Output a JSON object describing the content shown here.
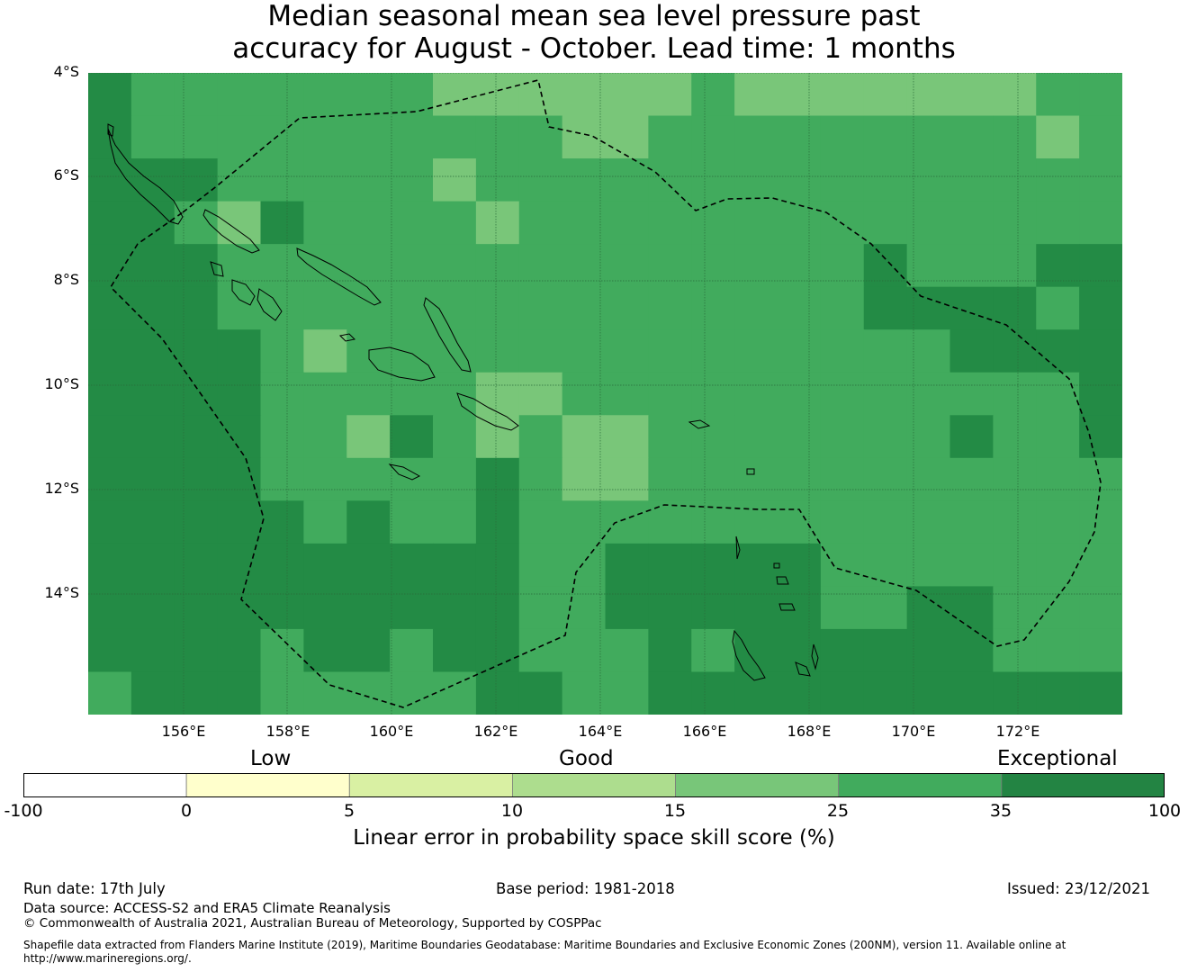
{
  "title": {
    "line1": "Median seasonal mean sea level pressure past",
    "line2": "accuracy for August - October. Lead time: 1 months"
  },
  "map": {
    "lat_labels": [
      "4°S",
      "6°S",
      "8°S",
      "10°S",
      "12°S",
      "14°S"
    ],
    "lon_labels": [
      "156°E",
      "158°E",
      "160°E",
      "162°E",
      "164°E",
      "166°E",
      "168°E",
      "170°E",
      "172°E"
    ],
    "extent": {
      "lon_min": 154.2,
      "lon_max": 174.0,
      "lat_north": -4.0,
      "lat_south": -16.3
    },
    "cell_grid": "0.83° cells, 24 columns x 15 rows, values are skill-score classes",
    "dominant_class": "25-35",
    "colors": {
      "class_15_25": "#79c679",
      "class_25_35": "#41ab5d",
      "class_35_100": "#238b45",
      "coast": "#000000",
      "eez_boundary": "#000000",
      "grid": "#2a6b3a"
    }
  },
  "colorbar": {
    "categories": [
      "Low",
      "Good",
      "Exceptional"
    ],
    "ticks": [
      "-100",
      "0",
      "5",
      "10",
      "15",
      "25",
      "35",
      "100"
    ],
    "colors": [
      "#ffffff",
      "#ffffcc",
      "#d9f0a3",
      "#addd8e",
      "#78c679",
      "#41ab5d",
      "#238443"
    ],
    "label": "Linear error in probability space skill score (%)"
  },
  "footer": {
    "run_date": "Run date: 17th July",
    "base_period": "Base period: 1981-2018",
    "issued": "Issued: 23/12/2021",
    "data_source": "Data source: ACCESS-S2 and ERA5 Climate Reanalysis",
    "copyright": "© Commonwealth of Australia 2021, Australian Bureau of Meteorology, Supported by COSPPac",
    "shapefile_line1": "Shapefile data extracted from Flanders Marine Institute (2019), Maritime Boundaries Geodatabase: Maritime Boundaries and Exclusive Economic Zones (200NM), version 11. Available online at",
    "shapefile_line2": "http://www.marineregions.org/."
  }
}
